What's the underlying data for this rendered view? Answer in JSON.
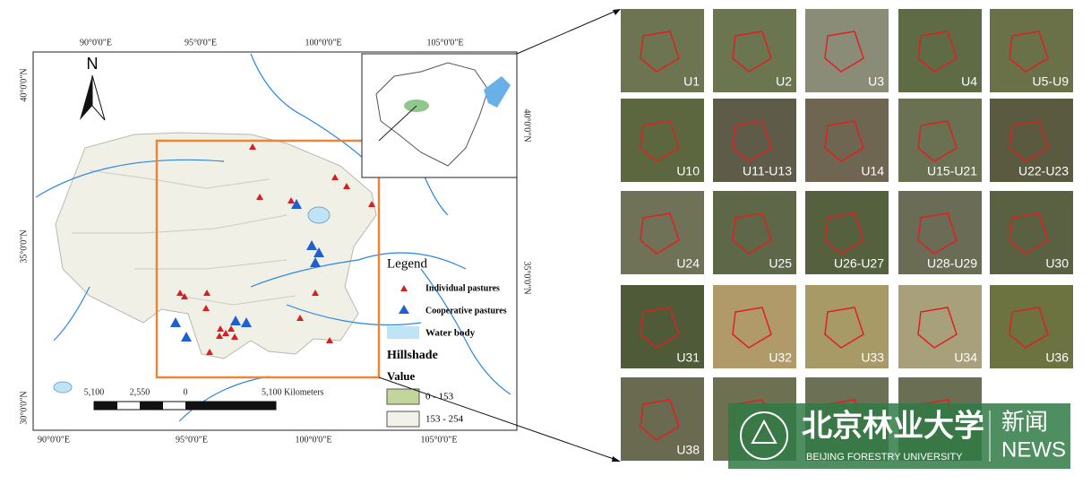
{
  "map": {
    "top_labels": [
      "90°0'0\"E",
      "95°0'0\"E",
      "100°0'0\"E",
      "105°0'0\"E"
    ],
    "bottom_labels": [
      "90°0'0\"E",
      "95°0'0\"E",
      "100°0'0\"E",
      "105°0'0\"E"
    ],
    "left_labels": [
      "40°0'0\"N",
      "35°0'0\"N",
      "30°0'0\"N"
    ],
    "right_labels": [
      "40°0'0\"N",
      "35°0'0\"N"
    ],
    "north": "N",
    "scale": [
      "5,100",
      "2,550",
      "0",
      "5,100 Kilometers"
    ],
    "legend": {
      "title": "Legend",
      "items": [
        "Individual pastures",
        "Cooperative pastures",
        "Water body"
      ],
      "hillshade": "Hillshade",
      "value": "Value",
      "ranges": [
        "0 - 153",
        "153 - 254"
      ]
    }
  },
  "thumbnails": [
    "U1",
    "U2",
    "U3",
    "U4",
    "U5-U9",
    "U10",
    "U11-U13",
    "U14",
    "U15-U21",
    "U22-U23",
    "U24",
    "U25",
    "U26-U27",
    "U28-U29",
    "U30",
    "U31",
    "U32",
    "U33",
    "U34",
    "U36",
    "U38"
  ],
  "watermark": {
    "cn": "北京林业大学",
    "en": "BEIJING FORESTRY UNIVERSITY",
    "news_cn": "新闻",
    "news_en": "NEWS"
  }
}
